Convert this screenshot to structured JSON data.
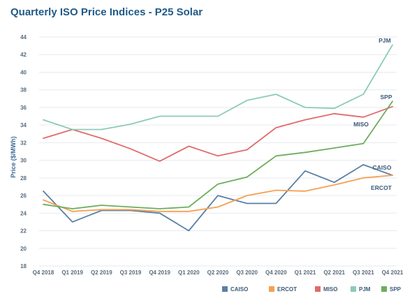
{
  "title": "Quarterly ISO Price Indices - P25 Solar",
  "chart_data": {
    "type": "line",
    "title": "Quarterly ISO Price Indices - P25 Solar",
    "xlabel": "",
    "ylabel": "Price ($/MWh)",
    "ylim": [
      18,
      44
    ],
    "yticks": [
      18,
      20,
      22,
      24,
      26,
      28,
      30,
      32,
      34,
      36,
      38,
      40,
      42,
      44
    ],
    "grid": true,
    "legend_position": "bottom-right",
    "categories": [
      "Q4 2018",
      "Q1 2019",
      "Q2 2019",
      "Q3 2019",
      "Q4 2019",
      "Q1 2020",
      "Q2 2020",
      "Q3 2020",
      "Q4 2020",
      "Q1 2021",
      "Q2 2021",
      "Q3 2021",
      "Q4 2021"
    ],
    "series": [
      {
        "name": "CAISO",
        "color": "#5b7fa6",
        "values": [
          26.5,
          23.0,
          24.3,
          24.3,
          24.0,
          22.0,
          26.0,
          25.1,
          25.1,
          28.8,
          27.5,
          29.5,
          28.3
        ]
      },
      {
        "name": "ERCOT",
        "color": "#f5a052",
        "values": [
          25.5,
          24.2,
          24.4,
          24.4,
          24.2,
          24.2,
          24.7,
          26.0,
          26.6,
          26.5,
          27.2,
          28.0,
          28.3
        ]
      },
      {
        "name": "MISO",
        "color": "#e06b6b",
        "values": [
          32.5,
          33.5,
          32.5,
          31.3,
          29.9,
          31.6,
          30.5,
          31.2,
          33.7,
          34.6,
          35.3,
          34.9,
          36.1
        ]
      },
      {
        "name": "PJM",
        "color": "#8ccbb8",
        "values": [
          34.6,
          33.5,
          33.5,
          34.1,
          35.0,
          35.0,
          35.0,
          36.8,
          37.5,
          36.0,
          35.9,
          37.5,
          43.1
        ]
      },
      {
        "name": "SPP",
        "color": "#6cae5c",
        "values": [
          25.0,
          24.5,
          24.9,
          24.7,
          24.5,
          24.7,
          27.3,
          28.1,
          30.5,
          30.9,
          31.4,
          31.9,
          36.7
        ]
      }
    ],
    "series_end_labels": [
      {
        "name": "PJM",
        "text": "PJM"
      },
      {
        "name": "SPP",
        "text": "SPP"
      },
      {
        "name": "MISO",
        "text": "MISO"
      },
      {
        "name": "CAISO",
        "text": "CAISO"
      },
      {
        "name": "ERCOT",
        "text": "ERCOT"
      }
    ]
  }
}
